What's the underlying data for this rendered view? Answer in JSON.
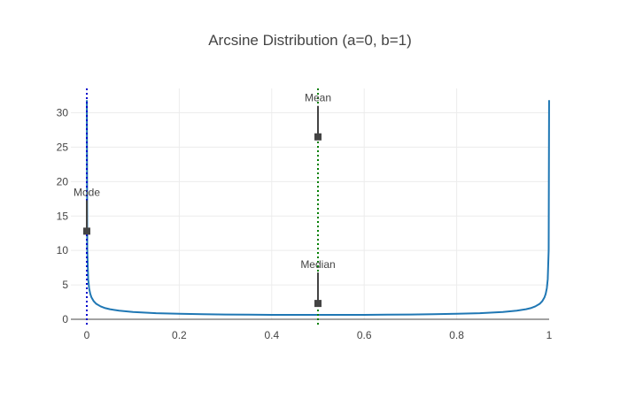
{
  "chart_data": {
    "type": "line",
    "title": "Arcsine Distribution (a=0, b=1)",
    "xlabel": "",
    "ylabel": "",
    "xlim": [
      0,
      1
    ],
    "ylim": [
      -0.8,
      33.5
    ],
    "x_ticks": [
      0,
      0.2,
      0.4,
      0.6,
      0.8,
      1
    ],
    "x_tick_labels": [
      "0",
      "0.2",
      "0.4",
      "0.6",
      "0.8",
      "1"
    ],
    "y_ticks": [
      0,
      5,
      10,
      15,
      20,
      25,
      30
    ],
    "y_tick_labels": [
      "0",
      "5",
      "10",
      "15",
      "20",
      "25",
      "30"
    ],
    "grid": true,
    "legend": "none",
    "series": [
      {
        "color": "#1f77b4",
        "x": [
          0.0001,
          0.001,
          0.003,
          0.005,
          0.0075,
          0.01,
          0.015,
          0.02,
          0.03,
          0.04,
          0.05,
          0.07,
          0.1,
          0.15,
          0.2,
          0.25,
          0.3,
          0.35,
          0.4,
          0.45,
          0.5,
          0.55,
          0.6,
          0.65,
          0.7,
          0.75,
          0.8,
          0.85,
          0.9,
          0.93,
          0.95,
          0.96,
          0.97,
          0.98,
          0.985,
          0.99,
          0.9925,
          0.995,
          0.997,
          0.999,
          0.9999
        ],
        "y": [
          31.83,
          10.07,
          5.82,
          4.51,
          3.69,
          3.2,
          2.62,
          2.27,
          1.87,
          1.62,
          1.46,
          1.25,
          1.06,
          0.89,
          0.8,
          0.74,
          0.69,
          0.67,
          0.65,
          0.64,
          0.64,
          0.64,
          0.65,
          0.67,
          0.69,
          0.74,
          0.8,
          0.89,
          1.06,
          1.25,
          1.46,
          1.62,
          1.87,
          2.27,
          2.62,
          3.2,
          3.69,
          4.51,
          5.82,
          10.07,
          31.83
        ]
      }
    ],
    "vlines": [
      {
        "x": 0,
        "color": "#0000cc",
        "style": "dotted"
      },
      {
        "x": 0.5,
        "color": "#008000",
        "style": "dotted"
      }
    ],
    "annotations": [
      {
        "text": "Mean",
        "x": 0.5,
        "y": 26.5
      },
      {
        "text": "Mode",
        "x": 0,
        "y": 12.8
      },
      {
        "text": "Median",
        "x": 0.5,
        "y": 2.3
      }
    ]
  }
}
